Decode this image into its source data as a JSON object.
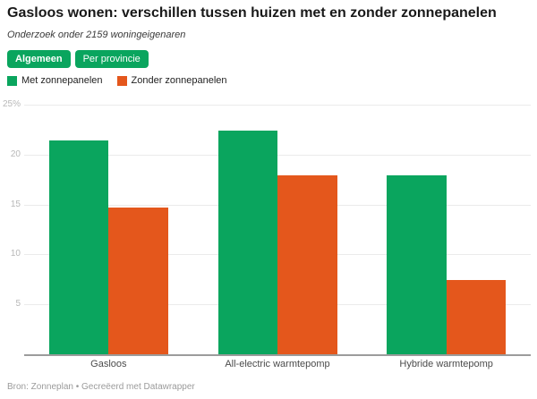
{
  "header": {
    "title": "Gasloos wonen: verschillen tussen huizen met en zonder zonnepanelen",
    "subtitle": "Onderzoek onder 2159 woningeigenaren"
  },
  "tabs": [
    {
      "label": "Algemeen",
      "active": true
    },
    {
      "label": "Per provincie",
      "active": false
    }
  ],
  "legend": [
    {
      "label": "Met zonnepanelen",
      "color": "#0aa55e"
    },
    {
      "label": "Zonder zonnepanelen",
      "color": "#e4571c"
    }
  ],
  "colors": {
    "accent_green": "#0aa55e",
    "accent_orange": "#e4571c",
    "gridline": "#ebebeb",
    "baseline": "#9c9c9c"
  },
  "chart_data": {
    "type": "bar",
    "categories": [
      "Gasloos",
      "All-electric warmtepomp",
      "Hybride warmtepomp"
    ],
    "series": [
      {
        "name": "Met zonnepanelen",
        "color": "#0aa55e",
        "values": [
          21.4,
          22.4,
          17.9
        ]
      },
      {
        "name": "Zonder zonnepanelen",
        "color": "#e4571c",
        "values": [
          14.7,
          17.9,
          7.4
        ]
      }
    ],
    "title": "Gasloos wonen: verschillen tussen huizen met en zonder zonnepanelen",
    "xlabel": "",
    "ylabel": "",
    "ylim": [
      0,
      25
    ],
    "yticks": [
      5,
      10,
      15,
      20,
      25
    ],
    "ytick_labels": [
      "5",
      "10",
      "15",
      "20",
      "25%"
    ],
    "grid": true,
    "legend_position": "top"
  },
  "footer": {
    "source": "Bron: Zonneplan",
    "separator": "•",
    "credit": "Gecreëerd met Datawrapper"
  }
}
